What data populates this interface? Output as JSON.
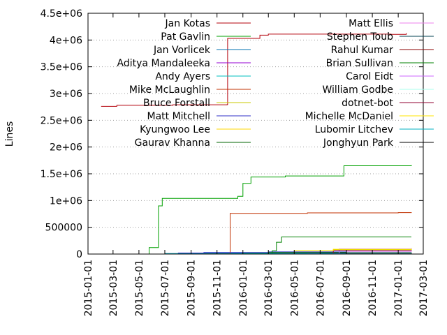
{
  "chart_data": {
    "type": "line",
    "ylabel": "Lines",
    "ylim": [
      0,
      4500000
    ],
    "xlim": [
      "2015-01-01",
      "2017-03-01"
    ],
    "x_ticks": [
      "2015-01-01",
      "2015-03-01",
      "2015-05-01",
      "2015-07-01",
      "2015-09-01",
      "2015-11-01",
      "2016-01-01",
      "2016-03-01",
      "2016-05-01",
      "2016-07-01",
      "2016-09-01",
      "2016-11-01",
      "2017-01-01",
      "2017-03-01"
    ],
    "y_ticks": [
      {
        "value": 0,
        "label": "0"
      },
      {
        "value": 500000,
        "label": "500000"
      },
      {
        "value": 1000000,
        "label": "1e+06"
      },
      {
        "value": 1500000,
        "label": "1.5e+06"
      },
      {
        "value": 2000000,
        "label": "2e+06"
      },
      {
        "value": 2500000,
        "label": "2.5e+06"
      },
      {
        "value": 3000000,
        "label": "3e+06"
      },
      {
        "value": 3500000,
        "label": "3.5e+06"
      },
      {
        "value": 4000000,
        "label": "4e+06"
      },
      {
        "value": 4500000,
        "label": "4.5e+06"
      }
    ],
    "grid": "horizontal dotted",
    "legend_position": "top, two columns",
    "series": [
      {
        "name": "Jan Kotas",
        "color": "#b3000b",
        "points": [
          [
            "2015-02-01",
            2760000
          ],
          [
            "2015-03-10",
            2780000
          ],
          [
            "2015-07-20",
            2790000
          ],
          [
            "2015-11-25",
            2795000
          ],
          [
            "2015-11-26",
            4030000
          ],
          [
            "2016-02-10",
            4090000
          ],
          [
            "2016-03-01",
            4110000
          ],
          [
            "2016-09-01",
            4110000
          ],
          [
            "2016-12-15",
            4105000
          ],
          [
            "2017-01-20",
            4130000
          ]
        ]
      },
      {
        "name": "Pat Gavlin",
        "color": "#00a000",
        "points": [
          [
            "2015-05-15",
            0
          ],
          [
            "2015-05-25",
            120000
          ],
          [
            "2015-06-15",
            120000
          ],
          [
            "2015-06-16",
            900000
          ],
          [
            "2015-06-25",
            1040000
          ],
          [
            "2015-11-01",
            1040000
          ],
          [
            "2015-12-20",
            1080000
          ],
          [
            "2016-01-01",
            1320000
          ],
          [
            "2016-01-20",
            1440000
          ],
          [
            "2016-04-10",
            1460000
          ],
          [
            "2016-08-25",
            1460000
          ],
          [
            "2016-08-26",
            1650000
          ],
          [
            "2017-02-01",
            1660000
          ]
        ]
      },
      {
        "name": "Jan Vorlicek",
        "color": "#0072b2",
        "points": [
          [
            "2015-07-01",
            10000
          ],
          [
            "2015-08-15",
            20000
          ],
          [
            "2016-01-01",
            25000
          ],
          [
            "2016-08-01",
            30000
          ],
          [
            "2017-02-01",
            35000
          ]
        ]
      },
      {
        "name": "Aditya Mandaleeka",
        "color": "#9400d3",
        "points": [
          [
            "2015-08-01",
            5000
          ],
          [
            "2016-04-01",
            20000
          ],
          [
            "2016-09-01",
            40000
          ],
          [
            "2017-02-01",
            50000
          ]
        ]
      },
      {
        "name": "Andy Ayers",
        "color": "#00bfbf",
        "points": [
          [
            "2015-07-01",
            5000
          ],
          [
            "2016-01-01",
            15000
          ],
          [
            "2016-06-01",
            30000
          ],
          [
            "2017-02-01",
            40000
          ]
        ]
      },
      {
        "name": "Mike McLaughlin",
        "color": "#c03000",
        "points": [
          [
            "2015-10-01",
            5000
          ],
          [
            "2015-12-01",
            10000
          ],
          [
            "2015-12-02",
            760000
          ],
          [
            "2016-05-01",
            760000
          ],
          [
            "2016-06-01",
            770000
          ],
          [
            "2017-01-01",
            775000
          ],
          [
            "2017-02-01",
            780000
          ]
        ]
      },
      {
        "name": "Bruce Forstall",
        "color": "#c8c800",
        "points": [
          [
            "2016-03-01",
            10000
          ],
          [
            "2016-05-01",
            60000
          ],
          [
            "2016-08-01",
            80000
          ],
          [
            "2017-02-01",
            90000
          ]
        ]
      },
      {
        "name": "Matt Mitchell",
        "color": "#3232c8",
        "points": [
          [
            "2015-08-01",
            20000
          ],
          [
            "2015-10-01",
            30000
          ],
          [
            "2016-03-01",
            40000
          ],
          [
            "2017-02-01",
            45000
          ]
        ]
      },
      {
        "name": "Kyungwoo Lee",
        "color": "#ffd700",
        "points": [
          [
            "2016-05-01",
            5000
          ],
          [
            "2016-08-01",
            20000
          ],
          [
            "2017-02-01",
            25000
          ]
        ]
      },
      {
        "name": "Gaurav Khanna",
        "color": "#006400",
        "points": [
          [
            "2016-01-01",
            15000
          ],
          [
            "2016-03-01",
            30000
          ],
          [
            "2017-02-01",
            40000
          ]
        ]
      },
      {
        "name": "Matt Ellis",
        "color": "#ee82ee",
        "points": [
          [
            "2016-06-01",
            10000
          ],
          [
            "2016-09-01",
            40000
          ],
          [
            "2017-02-01",
            50000
          ]
        ]
      },
      {
        "name": "Stephen Toub",
        "color": "#004050",
        "points": [
          [
            "2016-01-01",
            5000
          ],
          [
            "2016-07-01",
            20000
          ],
          [
            "2017-02-01",
            30000
          ]
        ]
      },
      {
        "name": "Rahul Kumar",
        "color": "#8b0000",
        "points": [
          [
            "2016-03-01",
            5000
          ],
          [
            "2016-08-01",
            15000
          ],
          [
            "2017-02-01",
            20000
          ]
        ]
      },
      {
        "name": "Brian Sullivan",
        "color": "#008000",
        "points": [
          [
            "2016-02-15",
            0
          ],
          [
            "2016-03-10",
            60000
          ],
          [
            "2016-03-20",
            220000
          ],
          [
            "2016-04-01",
            320000
          ],
          [
            "2016-10-01",
            320000
          ],
          [
            "2017-02-01",
            320000
          ]
        ]
      },
      {
        "name": "Carol Eidt",
        "color": "#cc66ff",
        "points": [
          [
            "2016-06-01",
            10000
          ],
          [
            "2016-08-15",
            95000
          ],
          [
            "2017-02-01",
            110000
          ]
        ]
      },
      {
        "name": "William Godbe",
        "color": "#aaffee",
        "points": [
          [
            "2016-06-01",
            5000
          ],
          [
            "2016-09-01",
            20000
          ],
          [
            "2017-02-01",
            30000
          ]
        ]
      },
      {
        "name": "dotnet-bot",
        "color": "#900030",
        "points": [
          [
            "2016-04-01",
            5000
          ],
          [
            "2016-08-01",
            70000
          ],
          [
            "2017-02-01",
            80000
          ]
        ]
      },
      {
        "name": "Michelle McDaniel",
        "color": "#ffe400",
        "points": [
          [
            "2016-05-01",
            60000
          ],
          [
            "2016-08-01",
            90000
          ],
          [
            "2017-02-01",
            100000
          ]
        ]
      },
      {
        "name": "Lubomir Litchev",
        "color": "#00b0c0",
        "points": [
          [
            "2015-07-01",
            5000
          ],
          [
            "2016-01-01",
            10000
          ],
          [
            "2017-02-01",
            20000
          ]
        ]
      },
      {
        "name": "Jonghyun Park",
        "color": "#000000",
        "points": [
          [
            "2016-09-01",
            5000
          ],
          [
            "2017-02-01",
            15000
          ]
        ]
      }
    ]
  }
}
